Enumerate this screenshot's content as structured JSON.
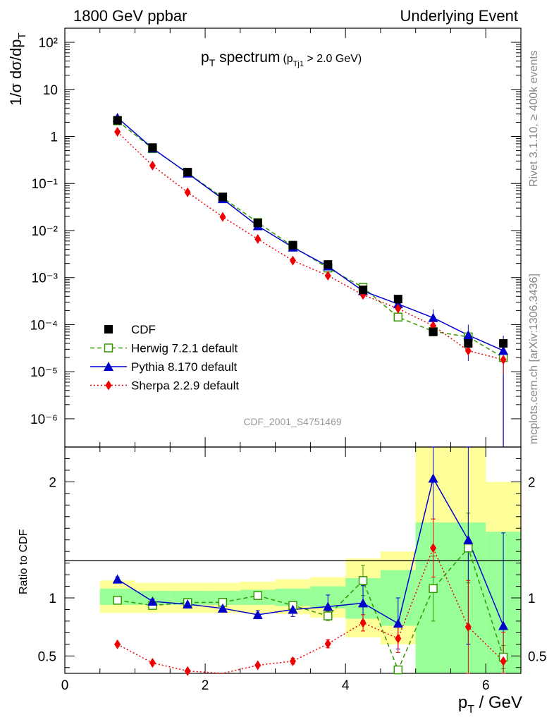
{
  "header": {
    "left": "1800 GeV ppbar",
    "right": "Underlying Event"
  },
  "side_labels": {
    "rivet": "Rivet 3.1.10, ≥ 400k events",
    "mcplots": "mcplots.cern.ch [arXiv:1306.3436]"
  },
  "watermark": "CDF_2001_S4751469",
  "chart_data": {
    "type": "scatter",
    "title_main": "p",
    "title_main_sub": "T",
    "title_main_rest": " spectrum",
    "title_cut": "(p",
    "title_cut_sub": "Tj1",
    "title_cut_rest": " > 2.0 GeV)",
    "ylabel_main": "1/σ dσ/dp",
    "ylabel_main_sub": "T",
    "ylabel_ratio": "Ratio to CDF",
    "xlabel": "p",
    "xlabel_sub": "T",
    "xlabel_rest": " / GeV",
    "x_range": [
      0,
      6.5
    ],
    "y_range_main_log10": [
      -6.6,
      2.3
    ],
    "y_range_ratio": [
      0.35,
      2.3
    ],
    "x_ticks": [
      "0",
      "2",
      "4",
      "6"
    ],
    "y_ticks_main": [
      "10⁻⁶",
      "10⁻⁵",
      "10⁻⁴",
      "10⁻³",
      "10⁻²",
      "10⁻¹",
      "1",
      "10",
      "10²"
    ],
    "y_ticks_ratio": [
      "0.5",
      "1",
      "2"
    ],
    "x": [
      0.75,
      1.25,
      1.75,
      2.25,
      2.75,
      3.25,
      3.75,
      4.25,
      4.75,
      5.25,
      5.75,
      6.25
    ],
    "bin_edges": [
      0.5,
      1.0,
      1.5,
      2.0,
      2.5,
      3.0,
      3.5,
      4.0,
      4.5,
      5.0,
      5.5,
      6.0,
      6.5
    ],
    "band_inner": [
      [
        0.94,
        1.08
      ],
      [
        0.94,
        1.06
      ],
      [
        0.94,
        1.06
      ],
      [
        0.94,
        1.06
      ],
      [
        0.94,
        1.07
      ],
      [
        0.93,
        1.08
      ],
      [
        0.91,
        1.1
      ],
      [
        0.82,
        1.17
      ],
      [
        0.76,
        1.24
      ],
      [
        0.35,
        1.65
      ],
      [
        0.35,
        1.65
      ],
      [
        0.35,
        1.57
      ]
    ],
    "band_outer": [
      [
        0.87,
        1.15
      ],
      [
        0.87,
        1.13
      ],
      [
        0.87,
        1.13
      ],
      [
        0.87,
        1.13
      ],
      [
        0.87,
        1.14
      ],
      [
        0.86,
        1.16
      ],
      [
        0.83,
        1.18
      ],
      [
        0.66,
        1.34
      ],
      [
        0.6,
        1.4
      ],
      [
        0.35,
        2.3
      ],
      [
        0.35,
        2.3
      ],
      [
        0.35,
        2.0
      ]
    ],
    "legend": [
      "CDF",
      "Herwig 7.2.1 default",
      "Pythia 8.170 default",
      "Sherpa 2.2.9 default"
    ],
    "series": [
      {
        "name": "CDF",
        "color": "#000000",
        "marker": "square-filled",
        "values": [
          2.2,
          0.58,
          0.175,
          0.052,
          0.0145,
          0.0049,
          0.0019,
          0.00055,
          0.00035,
          7e-05,
          4e-05,
          4e-05
        ]
      },
      {
        "name": "Herwig 7.2.1 default",
        "color": "#339900",
        "marker": "square-open",
        "dash": "6,4",
        "values": [
          2.15,
          0.55,
          0.168,
          0.05,
          0.0148,
          0.0046,
          0.0016,
          0.00062,
          0.000145,
          7.2e-05,
          5.5e-05,
          2e-05
        ],
        "ratio": [
          0.98,
          0.935,
          0.96,
          0.962,
          1.02,
          0.935,
          0.845,
          1.15,
          0.38,
          1.08,
          1.43,
          0.49
        ],
        "ratio_err": [
          0.02,
          0.02,
          0.02,
          0.02,
          0.03,
          0.03,
          0.04,
          0.13,
          0.02,
          0.28,
          0.3,
          0.1
        ]
      },
      {
        "name": "Pythia 8.170 default",
        "color": "#0000cc",
        "marker": "triangle",
        "dash": "",
        "values": [
          2.5,
          0.56,
          0.165,
          0.047,
          0.0125,
          0.0044,
          0.00175,
          0.00052,
          0.000275,
          0.00014,
          6e-05,
          2.8e-05
        ],
        "ratio": [
          1.16,
          0.97,
          0.945,
          0.91,
          0.855,
          0.9,
          0.925,
          0.955,
          0.78,
          2.03,
          1.5,
          0.76
        ],
        "ratio_err": [
          0.02,
          0.02,
          0.02,
          0.02,
          0.035,
          0.06,
          0.1,
          0.15,
          0.22,
          0.35,
          0.9,
          0.8
        ]
      },
      {
        "name": "Sherpa 2.2.9 default",
        "color": "#ee0000",
        "marker": "diamond",
        "dash": "2,3",
        "values": [
          1.25,
          0.24,
          0.065,
          0.0195,
          0.0066,
          0.0023,
          0.0011,
          0.00043,
          0.00022,
          9.5e-05,
          2.8e-05,
          1.8e-05
        ],
        "ratio": [
          0.6,
          0.44,
          0.37,
          0.32,
          0.42,
          0.455,
          0.605,
          0.785,
          0.65,
          1.43,
          0.75,
          0.455
        ],
        "ratio_err": [
          0.01,
          0.01,
          0.01,
          0.01,
          0.015,
          0.025,
          0.035,
          0.07,
          0.12,
          0.25,
          0.4,
          0.25
        ]
      }
    ]
  }
}
